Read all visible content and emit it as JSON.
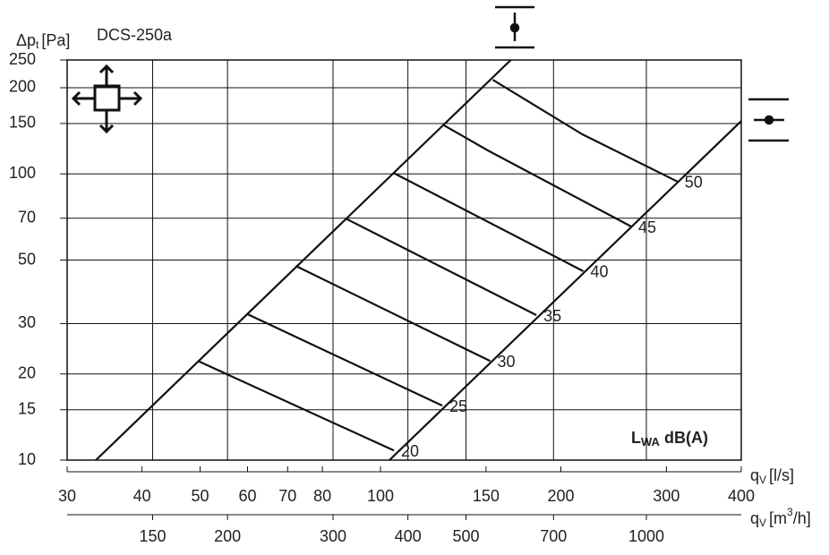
{
  "chart_data": {
    "type": "line",
    "title": "DCS-250a",
    "y_label": {
      "main": "Δp",
      "sub": "t",
      "unit": "[Pa]"
    },
    "x_label": {
      "main": "q",
      "sub": "V",
      "unit": "[l/s]"
    },
    "x2_label": {
      "main": "q",
      "sub": "V",
      "unit": "[m",
      "sup": "3",
      "end": "/h]"
    },
    "legend_label": {
      "main": "L",
      "sub": "WA",
      "unit": "dB(A)"
    },
    "log_x": true,
    "log_y": true,
    "grid": true,
    "xlim": [
      30,
      400
    ],
    "xticks": [
      30,
      40,
      50,
      60,
      70,
      80,
      100,
      150,
      200,
      300,
      400
    ],
    "x2lim": [
      108,
      1440
    ],
    "x2ticks": [
      150,
      200,
      300,
      400,
      500,
      700,
      1000
    ],
    "ylim": [
      10,
      250
    ],
    "yticks": [
      10,
      15,
      20,
      30,
      50,
      70,
      100,
      150,
      200,
      250
    ],
    "color": "#111111",
    "series": [
      {
        "x": [
          33.5,
          165
        ],
        "values": [
          10,
          250
        ]
      },
      {
        "x": [
          103.5,
          400
        ],
        "values": [
          10,
          153
        ]
      },
      {
        "name": "20",
        "x": [
          49.6,
          105.3
        ],
        "values": [
          22.2,
          10.8
        ]
      },
      {
        "name": "25",
        "x": [
          59.9,
          126.8
        ],
        "values": [
          32.4,
          15.5
        ]
      },
      {
        "name": "30",
        "x": [
          72.2,
          152.4
        ],
        "values": [
          47.7,
          22.2
        ]
      },
      {
        "name": "35",
        "x": [
          87.3,
          182
        ],
        "values": [
          70,
          32.1
        ]
      },
      {
        "name": "40",
        "x": [
          105,
          218
        ],
        "values": [
          100.9,
          45.7
        ]
      },
      {
        "name": "45",
        "x": [
          127.5,
          151,
          262
        ],
        "values": [
          148,
          120.8,
          65.5
        ]
      },
      {
        "name": "50",
        "x": [
          154,
          217,
          313
        ],
        "values": [
          213,
          137.6,
          94
        ]
      }
    ]
  }
}
